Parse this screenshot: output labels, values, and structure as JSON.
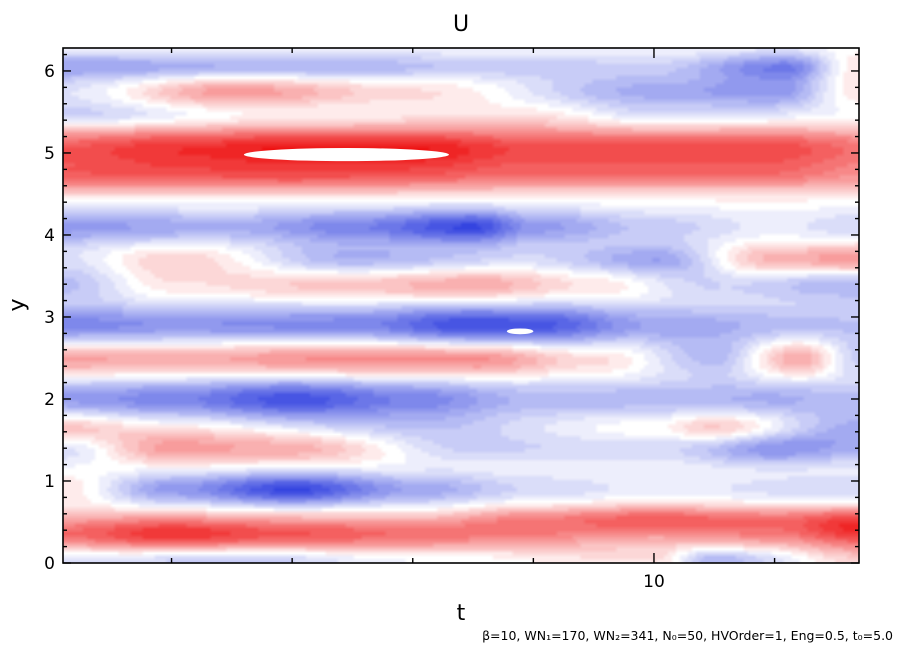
{
  "chart_data": {
    "type": "heatmap",
    "title": "U",
    "xlabel": "t",
    "ylabel": "y",
    "xlim": [
      5.1,
      11.7
    ],
    "ylim": [
      0,
      6.28
    ],
    "x_major_ticks": [
      {
        "value": 10,
        "label": "10"
      }
    ],
    "x_minor_ticks": [
      6,
      7,
      8,
      9,
      11
    ],
    "y_major_ticks": [
      {
        "value": 0,
        "label": "0"
      },
      {
        "value": 1,
        "label": "1"
      },
      {
        "value": 2,
        "label": "2"
      },
      {
        "value": 3,
        "label": "3"
      },
      {
        "value": 4,
        "label": "4"
      },
      {
        "value": 5,
        "label": "5"
      },
      {
        "value": 6,
        "label": "6"
      }
    ],
    "colormap": {
      "negative": "#2233dd",
      "zero": "#ffffff",
      "positive": "#ee1111"
    },
    "grid": false,
    "footnote": "β=10, WN₁=170, WN₂=341, N₀=50, HVOrder=1, Eng=0.5, t₀=5.0",
    "bands": [
      {
        "y": 6.05,
        "width": 0.12,
        "t": [
          5.1,
          7.0,
          9.0,
          10.0,
          11.1,
          11.7
        ],
        "amp": [
          -0.45,
          -0.4,
          -0.25,
          -0.2,
          -0.6,
          0.1
        ]
      },
      {
        "y": 5.75,
        "width": 0.14,
        "t": [
          5.1,
          6.5,
          8.0,
          10.0,
          11.0,
          11.7
        ],
        "amp": [
          -0.1,
          0.45,
          0.15,
          -0.4,
          -0.5,
          0.1
        ]
      },
      {
        "y": 5.45,
        "width": 0.12,
        "t": [
          5.1,
          7.0,
          9.0,
          10.0,
          11.7
        ],
        "amp": [
          -0.3,
          -0.1,
          0.05,
          -0.2,
          -0.1
        ]
      },
      {
        "y": 5.05,
        "width": 0.2,
        "t": [
          5.1,
          6.0,
          7.0,
          8.0,
          9.0,
          10.0,
          11.0,
          11.7
        ],
        "amp": [
          0.7,
          0.85,
          0.95,
          0.95,
          0.75,
          0.75,
          0.75,
          0.6
        ]
      },
      {
        "y": 4.7,
        "width": 0.14,
        "t": [
          5.1,
          7.0,
          9.0,
          11.0,
          11.7
        ],
        "amp": [
          0.5,
          0.5,
          0.4,
          0.4,
          0.3
        ]
      },
      {
        "y": 4.1,
        "width": 0.15,
        "t": [
          5.1,
          6.5,
          7.5,
          8.5,
          9.0,
          10.0,
          11.0,
          11.7
        ],
        "amp": [
          -0.5,
          -0.4,
          -0.6,
          -0.9,
          -0.5,
          -0.25,
          -0.1,
          -0.2
        ]
      },
      {
        "y": 3.7,
        "width": 0.14,
        "t": [
          5.1,
          6.0,
          7.5,
          9.0,
          10.0,
          11.0,
          11.7
        ],
        "amp": [
          -0.1,
          0.2,
          -0.4,
          -0.2,
          -0.45,
          0.35,
          0.5
        ]
      },
      {
        "y": 3.4,
        "width": 0.15,
        "t": [
          5.1,
          6.0,
          7.5,
          8.5,
          9.5,
          10.5,
          11.7
        ],
        "amp": [
          -0.3,
          0.1,
          0.3,
          0.4,
          0.15,
          -0.2,
          -0.4
        ]
      },
      {
        "y": 2.9,
        "width": 0.18,
        "t": [
          5.1,
          6.0,
          7.5,
          8.5,
          9.0,
          10.0,
          11.0,
          11.7
        ],
        "amp": [
          -0.6,
          -0.55,
          -0.6,
          -0.9,
          -0.85,
          -0.45,
          -0.35,
          -0.3
        ]
      },
      {
        "y": 2.5,
        "width": 0.16,
        "t": [
          5.1,
          6.0,
          7.5,
          8.5,
          9.5,
          10.5,
          11.2,
          11.7
        ],
        "amp": [
          0.45,
          0.4,
          0.55,
          0.55,
          0.2,
          -0.3,
          0.4,
          -0.2
        ]
      },
      {
        "y": 2.0,
        "width": 0.18,
        "t": [
          5.1,
          6.0,
          7.0,
          8.0,
          9.0,
          10.0,
          11.0,
          11.7
        ],
        "amp": [
          -0.5,
          -0.6,
          -0.85,
          -0.6,
          -0.35,
          -0.35,
          -0.4,
          -0.3
        ]
      },
      {
        "y": 1.65,
        "width": 0.14,
        "t": [
          5.1,
          6.0,
          8.0,
          10.0,
          10.5,
          11.7
        ],
        "amp": [
          0.35,
          0.1,
          -0.2,
          0.1,
          0.35,
          -0.3
        ]
      },
      {
        "y": 1.4,
        "width": 0.14,
        "t": [
          5.1,
          6.0,
          7.0,
          8.5,
          10.0,
          11.0,
          11.7
        ],
        "amp": [
          -0.2,
          0.4,
          0.35,
          -0.2,
          -0.2,
          -0.55,
          -0.35
        ]
      },
      {
        "y": 0.9,
        "width": 0.14,
        "t": [
          5.1,
          6.0,
          7.0,
          8.0,
          9.0,
          10.0,
          11.7
        ],
        "amp": [
          0.1,
          -0.5,
          -0.9,
          -0.45,
          -0.2,
          -0.1,
          -0.2
        ]
      },
      {
        "y": 0.55,
        "width": 0.12,
        "t": [
          5.1,
          8.0,
          9.0,
          10.0,
          11.0,
          11.7
        ],
        "amp": [
          0.1,
          0.05,
          0.35,
          0.55,
          0.4,
          0.5
        ]
      },
      {
        "y": 0.35,
        "width": 0.15,
        "t": [
          5.1,
          6.0,
          7.0,
          8.0,
          9.0,
          10.0,
          11.0,
          11.7
        ],
        "amp": [
          0.6,
          0.85,
          0.7,
          0.6,
          0.45,
          0.3,
          0.45,
          0.7
        ]
      },
      {
        "y": 0.05,
        "width": 0.1,
        "t": [
          5.1,
          6.5,
          8.0,
          10.0,
          10.5,
          11.7
        ],
        "amp": [
          -0.2,
          -0.35,
          -0.1,
          0.1,
          -0.4,
          0.1
        ]
      }
    ],
    "saturated_patches": [
      {
        "t_start": 6.6,
        "t_end": 8.3,
        "y_top": 5.06,
        "y_bottom": 4.9
      },
      {
        "t_start": 8.78,
        "t_end": 9.0,
        "y_top": 2.86,
        "y_bottom": 2.79
      }
    ]
  }
}
